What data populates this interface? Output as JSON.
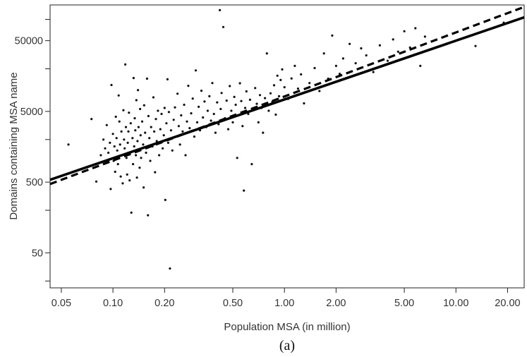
{
  "chart_data": {
    "type": "scatter",
    "xlabel": "Population MSA (in million)",
    "ylabel": "Domains containing MSA name",
    "caption": "(a)",
    "x_scale": "log",
    "y_scale": "log",
    "xlim": [
      0.043,
      25
    ],
    "ylim": [
      16,
      160000
    ],
    "x_ticks": [
      0.05,
      0.1,
      0.2,
      0.5,
      1,
      2,
      5,
      10,
      20
    ],
    "x_tick_labels": [
      "0.05",
      "0.10",
      "0.20",
      "0.50",
      "1.00",
      "2.00",
      "5.00",
      "10.00",
      "20.00"
    ],
    "y_ticks": [
      20,
      50,
      200,
      500,
      2000,
      5000,
      20000,
      50000,
      100000
    ],
    "y_tick_labels": [
      "",
      "50",
      "",
      "500",
      "",
      "5000",
      "",
      "50000",
      ""
    ],
    "grid": false,
    "fit_lines": [
      {
        "style": "solid",
        "x": [
          0.043,
          25
        ],
        "y": [
          540,
          107000
        ]
      },
      {
        "style": "dashed",
        "x": [
          0.043,
          25
        ],
        "y": [
          470,
          150000
        ]
      }
    ],
    "points": [
      [
        0.055,
        1700
      ],
      [
        0.075,
        3900
      ],
      [
        0.08,
        510
      ],
      [
        0.085,
        1200
      ],
      [
        0.088,
        2000
      ],
      [
        0.09,
        1500
      ],
      [
        0.092,
        3200
      ],
      [
        0.094,
        1300
      ],
      [
        0.096,
        1800
      ],
      [
        0.097,
        400
      ],
      [
        0.098,
        11800
      ],
      [
        0.1,
        2400
      ],
      [
        0.101,
        1000
      ],
      [
        0.102,
        1600
      ],
      [
        0.103,
        700
      ],
      [
        0.104,
        4200
      ],
      [
        0.105,
        2100
      ],
      [
        0.106,
        1400
      ],
      [
        0.107,
        900
      ],
      [
        0.108,
        8400
      ],
      [
        0.109,
        3600
      ],
      [
        0.11,
        1700
      ],
      [
        0.111,
        600
      ],
      [
        0.112,
        2600
      ],
      [
        0.113,
        1200
      ],
      [
        0.114,
        480
      ],
      [
        0.115,
        5200
      ],
      [
        0.116,
        2000
      ],
      [
        0.117,
        1500
      ],
      [
        0.118,
        23000
      ],
      [
        0.119,
        3000
      ],
      [
        0.12,
        1100
      ],
      [
        0.121,
        640
      ],
      [
        0.122,
        1800
      ],
      [
        0.123,
        2600
      ],
      [
        0.124,
        4800
      ],
      [
        0.125,
        530
      ],
      [
        0.126,
        1300
      ],
      [
        0.127,
        3400
      ],
      [
        0.128,
        185
      ],
      [
        0.13,
        2100
      ],
      [
        0.131,
        900
      ],
      [
        0.132,
        14800
      ],
      [
        0.133,
        1600
      ],
      [
        0.134,
        4000
      ],
      [
        0.135,
        2700
      ],
      [
        0.136,
        1200
      ],
      [
        0.137,
        7200
      ],
      [
        0.138,
        580
      ],
      [
        0.139,
        1900
      ],
      [
        0.14,
        10000
      ],
      [
        0.141,
        3000
      ],
      [
        0.142,
        1450
      ],
      [
        0.143,
        800
      ],
      [
        0.144,
        5400
      ],
      [
        0.145,
        2300
      ],
      [
        0.146,
        1100
      ],
      [
        0.148,
        3600
      ],
      [
        0.15,
        1700
      ],
      [
        0.151,
        420
      ],
      [
        0.152,
        6100
      ],
      [
        0.154,
        2500
      ],
      [
        0.156,
        1300
      ],
      [
        0.158,
        14500
      ],
      [
        0.16,
        170
      ],
      [
        0.161,
        4300
      ],
      [
        0.163,
        2100
      ],
      [
        0.165,
        1000
      ],
      [
        0.167,
        3000
      ],
      [
        0.17,
        1600
      ],
      [
        0.172,
        7900
      ],
      [
        0.174,
        2600
      ],
      [
        0.176,
        690
      ],
      [
        0.178,
        3900
      ],
      [
        0.18,
        1900
      ],
      [
        0.183,
        5100
      ],
      [
        0.186,
        1200
      ],
      [
        0.189,
        2800
      ],
      [
        0.192,
        4600
      ],
      [
        0.195,
        1500
      ],
      [
        0.198,
        2300
      ],
      [
        0.2,
        5600
      ],
      [
        0.202,
        280
      ],
      [
        0.205,
        3400
      ],
      [
        0.208,
        14200
      ],
      [
        0.21,
        1800
      ],
      [
        0.212,
        4900
      ],
      [
        0.215,
        30
      ],
      [
        0.218,
        2700
      ],
      [
        0.222,
        1400
      ],
      [
        0.226,
        3800
      ],
      [
        0.23,
        5700
      ],
      [
        0.234,
        2200
      ],
      [
        0.238,
        8900
      ],
      [
        0.242,
        3100
      ],
      [
        0.246,
        1700
      ],
      [
        0.25,
        4400
      ],
      [
        0.255,
        2600
      ],
      [
        0.26,
        6200
      ],
      [
        0.265,
        1200
      ],
      [
        0.27,
        3600
      ],
      [
        0.275,
        11500
      ],
      [
        0.28,
        2900
      ],
      [
        0.286,
        4700
      ],
      [
        0.292,
        7600
      ],
      [
        0.298,
        2200
      ],
      [
        0.304,
        19000
      ],
      [
        0.31,
        3500
      ],
      [
        0.316,
        5800
      ],
      [
        0.322,
        2700
      ],
      [
        0.328,
        9800
      ],
      [
        0.335,
        4100
      ],
      [
        0.342,
        6900
      ],
      [
        0.35,
        3000
      ],
      [
        0.357,
        5100
      ],
      [
        0.365,
        8200
      ],
      [
        0.373,
        3700
      ],
      [
        0.38,
        12600
      ],
      [
        0.388,
        4600
      ],
      [
        0.396,
        2500
      ],
      [
        0.405,
        6700
      ],
      [
        0.413,
        3300
      ],
      [
        0.42,
        135000
      ],
      [
        0.425,
        5400
      ],
      [
        0.43,
        9100
      ],
      [
        0.44,
        78000
      ],
      [
        0.45,
        4000
      ],
      [
        0.46,
        7100
      ],
      [
        0.47,
        2800
      ],
      [
        0.48,
        11400
      ],
      [
        0.49,
        5100
      ],
      [
        0.5,
        3500
      ],
      [
        0.51,
        8000
      ],
      [
        0.52,
        6200
      ],
      [
        0.53,
        1100
      ],
      [
        0.54,
        4400
      ],
      [
        0.55,
        12500
      ],
      [
        0.56,
        7000
      ],
      [
        0.57,
        3100
      ],
      [
        0.58,
        380
      ],
      [
        0.59,
        5600
      ],
      [
        0.6,
        9600
      ],
      [
        0.615,
        4600
      ],
      [
        0.63,
        7300
      ],
      [
        0.645,
        900
      ],
      [
        0.66,
        5200
      ],
      [
        0.675,
        10700
      ],
      [
        0.69,
        6400
      ],
      [
        0.705,
        3500
      ],
      [
        0.72,
        8500
      ],
      [
        0.735,
        5600
      ],
      [
        0.75,
        2500
      ],
      [
        0.77,
        7700
      ],
      [
        0.79,
        33000
      ],
      [
        0.81,
        5100
      ],
      [
        0.83,
        9000
      ],
      [
        0.85,
        6800
      ],
      [
        0.87,
        11700
      ],
      [
        0.89,
        4500
      ],
      [
        0.91,
        16000
      ],
      [
        0.93,
        8200
      ],
      [
        0.95,
        13900
      ],
      [
        0.97,
        19600
      ],
      [
        1.0,
        11000
      ],
      [
        1.05,
        7500
      ],
      [
        1.1,
        14600
      ],
      [
        1.15,
        22000
      ],
      [
        1.2,
        10500
      ],
      [
        1.25,
        16700
      ],
      [
        1.3,
        6500
      ],
      [
        1.4,
        12600
      ],
      [
        1.5,
        20500
      ],
      [
        1.6,
        9700
      ],
      [
        1.7,
        33000
      ],
      [
        1.8,
        14500
      ],
      [
        1.9,
        59000
      ],
      [
        2.0,
        22000
      ],
      [
        2.1,
        17000
      ],
      [
        2.2,
        28000
      ],
      [
        2.4,
        45000
      ],
      [
        2.6,
        24000
      ],
      [
        2.8,
        39000
      ],
      [
        3.0,
        31000
      ],
      [
        3.3,
        18000
      ],
      [
        3.6,
        43000
      ],
      [
        4.0,
        26000
      ],
      [
        4.3,
        52000
      ],
      [
        4.6,
        35000
      ],
      [
        5.0,
        68000
      ],
      [
        5.4,
        40000
      ],
      [
        5.8,
        75000
      ],
      [
        6.2,
        22000
      ],
      [
        6.6,
        57000
      ],
      [
        13.0,
        42000
      ],
      [
        19.0,
        90000
      ]
    ]
  }
}
